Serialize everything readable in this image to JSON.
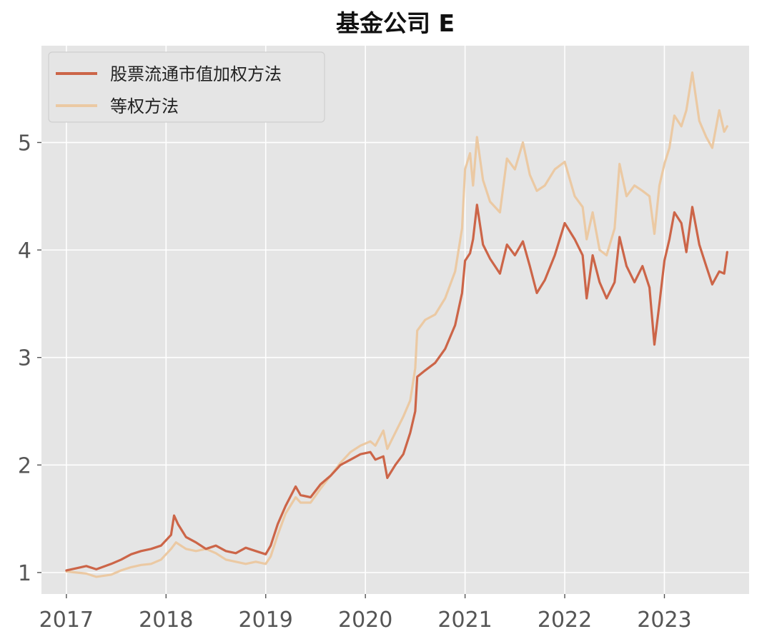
{
  "chart_data": {
    "type": "line",
    "title": "基金公司 E",
    "xlabel": "",
    "ylabel": "",
    "xlim": [
      2016.75,
      2023.85
    ],
    "ylim": [
      0.8,
      5.9
    ],
    "x_ticks": [
      2017,
      2018,
      2019,
      2020,
      2021,
      2022,
      2023
    ],
    "y_ticks": [
      1,
      2,
      3,
      4,
      5
    ],
    "grid": true,
    "legend_position": "top-left",
    "background": "#e5e5e5",
    "series": [
      {
        "name": "股票流通市值加权方法",
        "color": "#cc6548",
        "points": [
          [
            2017.0,
            1.02
          ],
          [
            2017.1,
            1.04
          ],
          [
            2017.2,
            1.06
          ],
          [
            2017.3,
            1.03
          ],
          [
            2017.45,
            1.08
          ],
          [
            2017.55,
            1.12
          ],
          [
            2017.65,
            1.17
          ],
          [
            2017.75,
            1.2
          ],
          [
            2017.85,
            1.22
          ],
          [
            2017.95,
            1.25
          ],
          [
            2018.05,
            1.35
          ],
          [
            2018.08,
            1.53
          ],
          [
            2018.12,
            1.45
          ],
          [
            2018.2,
            1.33
          ],
          [
            2018.3,
            1.28
          ],
          [
            2018.4,
            1.22
          ],
          [
            2018.5,
            1.25
          ],
          [
            2018.6,
            1.2
          ],
          [
            2018.7,
            1.18
          ],
          [
            2018.8,
            1.23
          ],
          [
            2018.9,
            1.2
          ],
          [
            2019.0,
            1.17
          ],
          [
            2019.05,
            1.25
          ],
          [
            2019.12,
            1.45
          ],
          [
            2019.2,
            1.62
          ],
          [
            2019.3,
            1.8
          ],
          [
            2019.35,
            1.72
          ],
          [
            2019.45,
            1.7
          ],
          [
            2019.55,
            1.82
          ],
          [
            2019.65,
            1.9
          ],
          [
            2019.75,
            2.0
          ],
          [
            2019.85,
            2.05
          ],
          [
            2019.95,
            2.1
          ],
          [
            2020.05,
            2.12
          ],
          [
            2020.1,
            2.05
          ],
          [
            2020.18,
            2.08
          ],
          [
            2020.22,
            1.88
          ],
          [
            2020.3,
            2.0
          ],
          [
            2020.38,
            2.1
          ],
          [
            2020.45,
            2.3
          ],
          [
            2020.5,
            2.5
          ],
          [
            2020.52,
            2.82
          ],
          [
            2020.6,
            2.88
          ],
          [
            2020.7,
            2.95
          ],
          [
            2020.8,
            3.08
          ],
          [
            2020.9,
            3.3
          ],
          [
            2020.97,
            3.6
          ],
          [
            2021.0,
            3.9
          ],
          [
            2021.05,
            3.97
          ],
          [
            2021.08,
            4.1
          ],
          [
            2021.12,
            4.42
          ],
          [
            2021.18,
            4.05
          ],
          [
            2021.25,
            3.92
          ],
          [
            2021.35,
            3.78
          ],
          [
            2021.42,
            4.05
          ],
          [
            2021.5,
            3.95
          ],
          [
            2021.58,
            4.08
          ],
          [
            2021.65,
            3.85
          ],
          [
            2021.72,
            3.6
          ],
          [
            2021.8,
            3.72
          ],
          [
            2021.9,
            3.95
          ],
          [
            2022.0,
            4.25
          ],
          [
            2022.1,
            4.1
          ],
          [
            2022.18,
            3.95
          ],
          [
            2022.22,
            3.55
          ],
          [
            2022.28,
            3.95
          ],
          [
            2022.35,
            3.7
          ],
          [
            2022.42,
            3.55
          ],
          [
            2022.5,
            3.7
          ],
          [
            2022.55,
            4.12
          ],
          [
            2022.62,
            3.85
          ],
          [
            2022.7,
            3.7
          ],
          [
            2022.78,
            3.85
          ],
          [
            2022.85,
            3.65
          ],
          [
            2022.9,
            3.12
          ],
          [
            2022.95,
            3.5
          ],
          [
            2023.0,
            3.9
          ],
          [
            2023.05,
            4.1
          ],
          [
            2023.1,
            4.35
          ],
          [
            2023.17,
            4.25
          ],
          [
            2023.22,
            3.98
          ],
          [
            2023.28,
            4.4
          ],
          [
            2023.35,
            4.05
          ],
          [
            2023.42,
            3.85
          ],
          [
            2023.48,
            3.68
          ],
          [
            2023.55,
            3.8
          ],
          [
            2023.6,
            3.78
          ],
          [
            2023.63,
            3.98
          ]
        ]
      },
      {
        "name": "等权方法",
        "color": "#ebc9a3",
        "points": [
          [
            2017.0,
            1.01
          ],
          [
            2017.1,
            1.0
          ],
          [
            2017.2,
            0.99
          ],
          [
            2017.3,
            0.96
          ],
          [
            2017.45,
            0.98
          ],
          [
            2017.55,
            1.02
          ],
          [
            2017.65,
            1.05
          ],
          [
            2017.75,
            1.07
          ],
          [
            2017.85,
            1.08
          ],
          [
            2017.95,
            1.12
          ],
          [
            2018.05,
            1.22
          ],
          [
            2018.1,
            1.28
          ],
          [
            2018.2,
            1.22
          ],
          [
            2018.3,
            1.2
          ],
          [
            2018.4,
            1.22
          ],
          [
            2018.5,
            1.18
          ],
          [
            2018.6,
            1.12
          ],
          [
            2018.7,
            1.1
          ],
          [
            2018.8,
            1.08
          ],
          [
            2018.9,
            1.1
          ],
          [
            2019.0,
            1.08
          ],
          [
            2019.05,
            1.15
          ],
          [
            2019.12,
            1.35
          ],
          [
            2019.2,
            1.55
          ],
          [
            2019.3,
            1.7
          ],
          [
            2019.35,
            1.65
          ],
          [
            2019.45,
            1.65
          ],
          [
            2019.55,
            1.78
          ],
          [
            2019.65,
            1.9
          ],
          [
            2019.75,
            2.02
          ],
          [
            2019.85,
            2.12
          ],
          [
            2019.95,
            2.18
          ],
          [
            2020.05,
            2.22
          ],
          [
            2020.1,
            2.18
          ],
          [
            2020.18,
            2.32
          ],
          [
            2020.22,
            2.15
          ],
          [
            2020.3,
            2.3
          ],
          [
            2020.38,
            2.45
          ],
          [
            2020.45,
            2.6
          ],
          [
            2020.5,
            2.9
          ],
          [
            2020.52,
            3.25
          ],
          [
            2020.6,
            3.35
          ],
          [
            2020.7,
            3.4
          ],
          [
            2020.8,
            3.55
          ],
          [
            2020.9,
            3.8
          ],
          [
            2020.97,
            4.2
          ],
          [
            2021.0,
            4.75
          ],
          [
            2021.05,
            4.9
          ],
          [
            2021.08,
            4.6
          ],
          [
            2021.12,
            5.05
          ],
          [
            2021.18,
            4.65
          ],
          [
            2021.25,
            4.45
          ],
          [
            2021.35,
            4.35
          ],
          [
            2021.42,
            4.85
          ],
          [
            2021.5,
            4.75
          ],
          [
            2021.58,
            5.0
          ],
          [
            2021.65,
            4.7
          ],
          [
            2021.72,
            4.55
          ],
          [
            2021.8,
            4.6
          ],
          [
            2021.9,
            4.75
          ],
          [
            2022.0,
            4.82
          ],
          [
            2022.1,
            4.5
          ],
          [
            2022.18,
            4.4
          ],
          [
            2022.22,
            4.1
          ],
          [
            2022.28,
            4.35
          ],
          [
            2022.35,
            4.0
          ],
          [
            2022.42,
            3.95
          ],
          [
            2022.5,
            4.2
          ],
          [
            2022.55,
            4.8
          ],
          [
            2022.62,
            4.5
          ],
          [
            2022.7,
            4.6
          ],
          [
            2022.78,
            4.55
          ],
          [
            2022.85,
            4.5
          ],
          [
            2022.9,
            4.15
          ],
          [
            2022.95,
            4.6
          ],
          [
            2023.0,
            4.8
          ],
          [
            2023.05,
            4.95
          ],
          [
            2023.1,
            5.25
          ],
          [
            2023.17,
            5.15
          ],
          [
            2023.22,
            5.3
          ],
          [
            2023.28,
            5.65
          ],
          [
            2023.35,
            5.2
          ],
          [
            2023.42,
            5.05
          ],
          [
            2023.48,
            4.95
          ],
          [
            2023.55,
            5.3
          ],
          [
            2023.6,
            5.1
          ],
          [
            2023.63,
            5.15
          ]
        ]
      }
    ]
  }
}
